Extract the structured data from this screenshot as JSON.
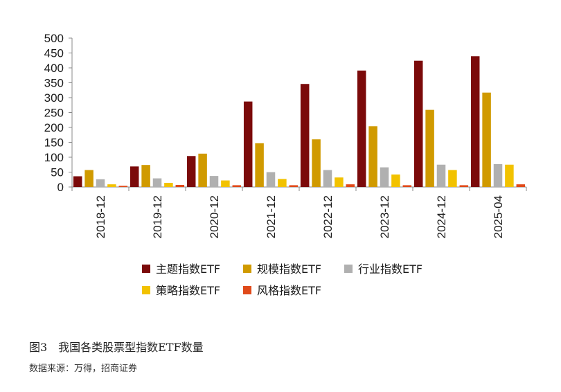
{
  "figure": {
    "caption": "图3　我国各类股票型指数ETF数量",
    "source": "数据来源：万得，招商证券"
  },
  "chart_data": {
    "type": "bar",
    "title": "",
    "xlabel": "",
    "ylabel": "",
    "ylim": [
      0,
      500
    ],
    "yticks": [
      0,
      50,
      100,
      150,
      200,
      250,
      300,
      350,
      400,
      450,
      500
    ],
    "grid": false,
    "legend_position": "bottom",
    "categories": [
      "2018-12",
      "2019-12",
      "2020-12",
      "2021-12",
      "2022-12",
      "2023-12",
      "2024-12",
      "2025-04"
    ],
    "series": [
      {
        "name": "主题指数ETF",
        "color": "#7b0a0a",
        "values": [
          36,
          69,
          104,
          287,
          346,
          391,
          424,
          439
        ]
      },
      {
        "name": "规模指数ETF",
        "color": "#d09a00",
        "values": [
          57,
          74,
          112,
          147,
          160,
          204,
          259,
          317
        ]
      },
      {
        "name": "行业指数ETF",
        "color": "#b0b0b0",
        "values": [
          26,
          29,
          37,
          50,
          57,
          66,
          75,
          77
        ]
      },
      {
        "name": "策略指数ETF",
        "color": "#f2c200",
        "values": [
          9,
          14,
          22,
          27,
          32,
          42,
          57,
          75
        ]
      },
      {
        "name": "风格指数ETF",
        "color": "#e04a1a",
        "values": [
          4,
          7,
          6,
          6,
          9,
          6,
          6,
          9
        ]
      }
    ]
  }
}
